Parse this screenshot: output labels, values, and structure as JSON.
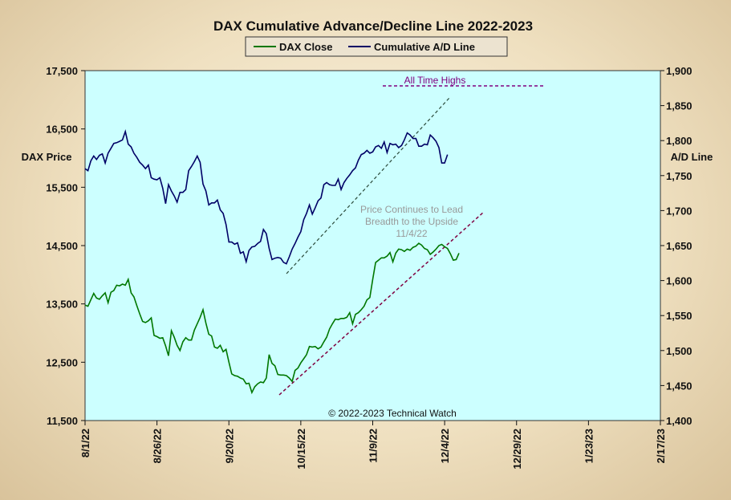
{
  "chart_data": {
    "type": "line",
    "title": "DAX Cumulative Advance/Decline Line 2022-2023",
    "ylabel_left": "DAX Price",
    "ylabel_right": "A/D Line",
    "ylim_left": [
      11500,
      17500
    ],
    "ylim_right": [
      1400,
      1900
    ],
    "yticks_left": [
      "17,500",
      "16,500",
      "15,500",
      "14,500",
      "13,500",
      "12,500",
      "11,500"
    ],
    "yticks_right": [
      "1,900",
      "1,850",
      "1,800",
      "1,750",
      "1,700",
      "1,650",
      "1,600",
      "1,550",
      "1,500",
      "1,450",
      "1,400"
    ],
    "xticks": [
      "8/1/22",
      "8/26/22",
      "9/20/22",
      "10/15/22",
      "11/9/22",
      "12/4/22",
      "12/29/22",
      "1/23/23",
      "2/17/23"
    ],
    "x_range_days": [
      0,
      200
    ],
    "grid": false,
    "legend_position": "top-center",
    "background_color": "#ccffff",
    "colors": {
      "dax": "#007700",
      "ad": "#000066",
      "annotation": "#800080",
      "channel": "#2a4a3a"
    },
    "series": [
      {
        "name": "DAX Close",
        "axis": "left",
        "points": [
          [
            0,
            13480
          ],
          [
            1,
            13460
          ],
          [
            2,
            13570
          ],
          [
            3,
            13680
          ],
          [
            4,
            13600
          ],
          [
            5,
            13580
          ],
          [
            6,
            13640
          ],
          [
            7,
            13690
          ],
          [
            8,
            13520
          ],
          [
            9,
            13700
          ],
          [
            10,
            13730
          ],
          [
            11,
            13820
          ],
          [
            12,
            13810
          ],
          [
            13,
            13840
          ],
          [
            14,
            13820
          ],
          [
            15,
            13920
          ],
          [
            16,
            13690
          ],
          [
            17,
            13620
          ],
          [
            18,
            13470
          ],
          [
            19,
            13330
          ],
          [
            20,
            13200
          ],
          [
            21,
            13180
          ],
          [
            22,
            13210
          ],
          [
            23,
            13260
          ],
          [
            24,
            12960
          ],
          [
            25,
            12940
          ],
          [
            26,
            12910
          ],
          [
            27,
            12920
          ],
          [
            28,
            12780
          ],
          [
            29,
            12610
          ],
          [
            30,
            13040
          ],
          [
            31,
            12930
          ],
          [
            32,
            12790
          ],
          [
            33,
            12700
          ],
          [
            34,
            12850
          ],
          [
            35,
            12920
          ],
          [
            36,
            12880
          ],
          [
            37,
            12880
          ],
          [
            38,
            13050
          ],
          [
            39,
            13160
          ],
          [
            40,
            13270
          ],
          [
            41,
            13400
          ],
          [
            42,
            13170
          ],
          [
            43,
            12980
          ],
          [
            44,
            12950
          ],
          [
            45,
            12760
          ],
          [
            46,
            12740
          ],
          [
            47,
            12790
          ],
          [
            48,
            12680
          ],
          [
            49,
            12720
          ],
          [
            50,
            12500
          ],
          [
            51,
            12300
          ],
          [
            52,
            12270
          ],
          [
            53,
            12260
          ],
          [
            54,
            12230
          ],
          [
            55,
            12210
          ],
          [
            56,
            12130
          ],
          [
            57,
            12140
          ],
          [
            58,
            11980
          ],
          [
            59,
            12080
          ],
          [
            60,
            12130
          ],
          [
            61,
            12160
          ],
          [
            62,
            12150
          ],
          [
            63,
            12230
          ],
          [
            64,
            12630
          ],
          [
            65,
            12480
          ],
          [
            66,
            12440
          ],
          [
            67,
            12290
          ],
          [
            68,
            12280
          ],
          [
            69,
            12280
          ],
          [
            70,
            12270
          ],
          [
            71,
            12230
          ],
          [
            72,
            12170
          ],
          [
            73,
            12360
          ],
          [
            74,
            12400
          ],
          [
            75,
            12490
          ],
          [
            76,
            12560
          ],
          [
            77,
            12630
          ],
          [
            78,
            12770
          ],
          [
            79,
            12760
          ],
          [
            80,
            12770
          ],
          [
            81,
            12730
          ],
          [
            82,
            12760
          ],
          [
            83,
            12850
          ],
          [
            84,
            12930
          ],
          [
            85,
            13070
          ],
          [
            86,
            13160
          ],
          [
            87,
            13240
          ],
          [
            88,
            13230
          ],
          [
            89,
            13250
          ],
          [
            90,
            13250
          ],
          [
            91,
            13270
          ],
          [
            92,
            13350
          ],
          [
            93,
            13160
          ],
          [
            94,
            13320
          ],
          [
            95,
            13350
          ],
          [
            96,
            13400
          ],
          [
            97,
            13460
          ],
          [
            98,
            13570
          ],
          [
            99,
            13610
          ],
          [
            100,
            13920
          ],
          [
            101,
            14210
          ],
          [
            102,
            14250
          ],
          [
            103,
            14290
          ],
          [
            104,
            14290
          ],
          [
            105,
            14320
          ],
          [
            106,
            14380
          ],
          [
            107,
            14220
          ],
          [
            108,
            14370
          ],
          [
            109,
            14440
          ],
          [
            110,
            14430
          ],
          [
            111,
            14400
          ],
          [
            112,
            14440
          ],
          [
            113,
            14420
          ],
          [
            114,
            14470
          ],
          [
            115,
            14490
          ],
          [
            116,
            14540
          ],
          [
            117,
            14510
          ],
          [
            118,
            14450
          ],
          [
            119,
            14430
          ],
          [
            120,
            14350
          ],
          [
            121,
            14390
          ],
          [
            122,
            14440
          ],
          [
            123,
            14500
          ],
          [
            124,
            14520
          ],
          [
            125,
            14480
          ],
          [
            126,
            14450
          ],
          [
            127,
            14360
          ],
          [
            128,
            14250
          ],
          [
            129,
            14260
          ],
          [
            130,
            14370
          ]
        ]
      },
      {
        "name": "Cumulative A/D Line",
        "axis": "right",
        "points": [
          [
            0,
            1760
          ],
          [
            1,
            1757
          ],
          [
            2,
            1771
          ],
          [
            3,
            1778
          ],
          [
            4,
            1773
          ],
          [
            5,
            1779
          ],
          [
            6,
            1781
          ],
          [
            7,
            1768
          ],
          [
            8,
            1782
          ],
          [
            9,
            1789
          ],
          [
            10,
            1796
          ],
          [
            11,
            1797
          ],
          [
            12,
            1799
          ],
          [
            13,
            1801
          ],
          [
            14,
            1813
          ],
          [
            15,
            1795
          ],
          [
            16,
            1791
          ],
          [
            17,
            1782
          ],
          [
            18,
            1776
          ],
          [
            19,
            1769
          ],
          [
            20,
            1765
          ],
          [
            21,
            1760
          ],
          [
            22,
            1765
          ],
          [
            23,
            1747
          ],
          [
            24,
            1745
          ],
          [
            25,
            1744
          ],
          [
            26,
            1747
          ],
          [
            27,
            1732
          ],
          [
            28,
            1710
          ],
          [
            29,
            1737
          ],
          [
            30,
            1728
          ],
          [
            31,
            1721
          ],
          [
            32,
            1712
          ],
          [
            33,
            1726
          ],
          [
            34,
            1726
          ],
          [
            35,
            1730
          ],
          [
            36,
            1757
          ],
          [
            37,
            1763
          ],
          [
            38,
            1770
          ],
          [
            39,
            1778
          ],
          [
            40,
            1769
          ],
          [
            41,
            1738
          ],
          [
            42,
            1728
          ],
          [
            43,
            1708
          ],
          [
            44,
            1711
          ],
          [
            45,
            1711
          ],
          [
            46,
            1715
          ],
          [
            47,
            1701
          ],
          [
            48,
            1696
          ],
          [
            49,
            1680
          ],
          [
            50,
            1655
          ],
          [
            51,
            1655
          ],
          [
            52,
            1652
          ],
          [
            53,
            1654
          ],
          [
            54,
            1639
          ],
          [
            55,
            1641
          ],
          [
            56,
            1627
          ],
          [
            57,
            1643
          ],
          [
            58,
            1648
          ],
          [
            59,
            1649
          ],
          [
            60,
            1653
          ],
          [
            61,
            1656
          ],
          [
            62,
            1673
          ],
          [
            63,
            1667
          ],
          [
            64,
            1646
          ],
          [
            65,
            1630
          ],
          [
            66,
            1632
          ],
          [
            67,
            1633
          ],
          [
            68,
            1632
          ],
          [
            69,
            1626
          ],
          [
            70,
            1624
          ],
          [
            71,
            1634
          ],
          [
            72,
            1645
          ],
          [
            73,
            1653
          ],
          [
            74,
            1662
          ],
          [
            75,
            1670
          ],
          [
            76,
            1687
          ],
          [
            77,
            1696
          ],
          [
            78,
            1708
          ],
          [
            79,
            1695
          ],
          [
            80,
            1704
          ],
          [
            81,
            1714
          ],
          [
            82,
            1718
          ],
          [
            83,
            1737
          ],
          [
            84,
            1740
          ],
          [
            85,
            1737
          ],
          [
            86,
            1736
          ],
          [
            87,
            1736
          ],
          [
            88,
            1745
          ],
          [
            89,
            1730
          ],
          [
            90,
            1740
          ],
          [
            91,
            1746
          ],
          [
            92,
            1751
          ],
          [
            93,
            1757
          ],
          [
            94,
            1761
          ],
          [
            95,
            1772
          ],
          [
            96,
            1780
          ],
          [
            97,
            1782
          ],
          [
            98,
            1786
          ],
          [
            99,
            1782
          ],
          [
            100,
            1784
          ],
          [
            101,
            1791
          ],
          [
            102,
            1793
          ],
          [
            103,
            1789
          ],
          [
            104,
            1798
          ],
          [
            105,
            1783
          ],
          [
            106,
            1796
          ],
          [
            107,
            1794
          ],
          [
            108,
            1795
          ],
          [
            109,
            1790
          ],
          [
            110,
            1793
          ],
          [
            111,
            1801
          ],
          [
            112,
            1811
          ],
          [
            113,
            1808
          ],
          [
            114,
            1803
          ],
          [
            115,
            1803
          ],
          [
            116,
            1792
          ],
          [
            117,
            1792
          ],
          [
            118,
            1795
          ],
          [
            119,
            1794
          ],
          [
            120,
            1808
          ],
          [
            121,
            1804
          ],
          [
            122,
            1799
          ],
          [
            123,
            1790
          ],
          [
            124,
            1768
          ],
          [
            125,
            1768
          ],
          [
            126,
            1780
          ]
        ]
      }
    ],
    "annotations": [
      {
        "text": "All Time Highs",
        "color": "#800080"
      },
      {
        "text": "Price Continues to Lead",
        "color": "#999999"
      },
      {
        "text": "Breadth to the Upside",
        "color": "#999999"
      },
      {
        "text": "11/4/22",
        "color": "#999999"
      },
      {
        "text": "© 2022-2023  Technical  Watch",
        "color": "#111111"
      }
    ]
  }
}
